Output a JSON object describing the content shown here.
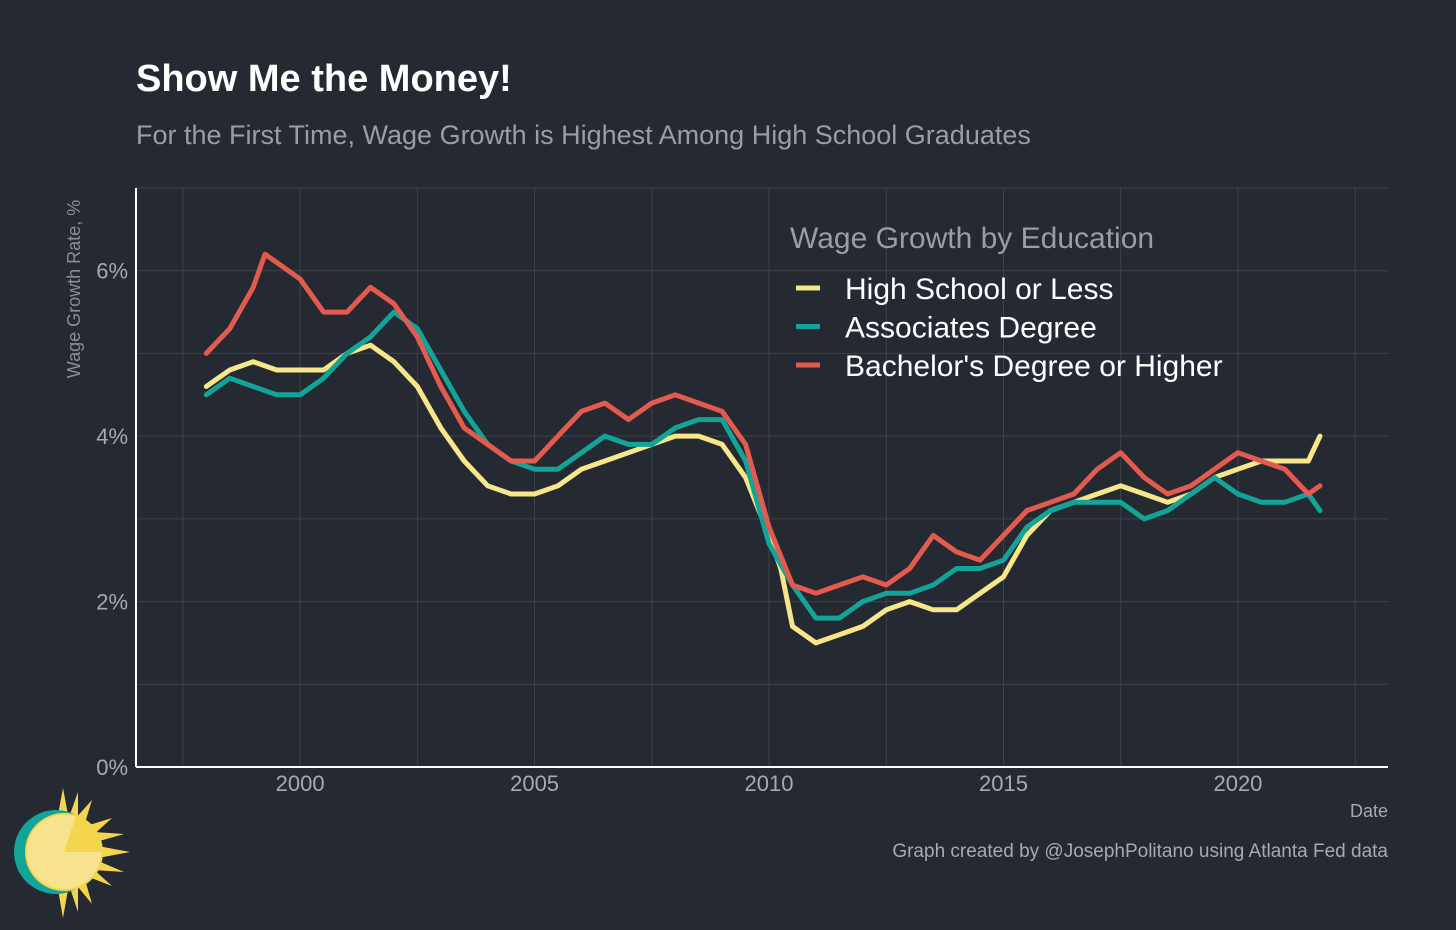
{
  "header": {
    "title": "Show Me the Money!",
    "subtitle": "For the First Time, Wage Growth is Highest Among High School Graduates"
  },
  "caption": "Graph created by @JosephPolitano using Atlanta Fed data",
  "logo": {
    "icon": "sun-icon"
  },
  "colors": {
    "background": "#252931",
    "grid": "#3e424b",
    "axis": "#ffffff",
    "tick_text": "#a7aab0",
    "legend_title": "#9a9da3",
    "legend_text": "#ffffff"
  },
  "chart_data": {
    "type": "line",
    "xlabel": "Date",
    "ylabel": "Wage Growth Rate, %",
    "xlim": [
      1996.5,
      2023.2
    ],
    "ylim": [
      0,
      7
    ],
    "x_ticks": [
      2000,
      2005,
      2010,
      2015,
      2020
    ],
    "x_tick_labels": [
      "2000",
      "2005",
      "2010",
      "2015",
      "2020"
    ],
    "y_ticks": [
      0,
      2,
      4,
      6
    ],
    "y_tick_labels": [
      "0%",
      "2%",
      "4%",
      "6%"
    ],
    "grid": true,
    "legend": {
      "title": "Wage Growth by Education",
      "position": "top-right"
    },
    "series": [
      {
        "name": "High School or Less",
        "color": "#f8e78a",
        "x": [
          "1998-01",
          "1998-04",
          "1998-07",
          "1999-01",
          "1999-07",
          "2000-01",
          "2000-07",
          "2001-01",
          "2001-07",
          "2002-01",
          "2002-07",
          "2003-01",
          "2003-07",
          "2004-01",
          "2004-07",
          "2005-01",
          "2005-07",
          "2006-01",
          "2006-07",
          "2007-01",
          "2007-07",
          "2008-01",
          "2008-07",
          "2009-01",
          "2009-07",
          "2010-01",
          "2010-04",
          "2010-07",
          "2011-01",
          "2011-07",
          "2012-01",
          "2012-07",
          "2013-01",
          "2013-07",
          "2014-01",
          "2014-07",
          "2015-01",
          "2015-07",
          "2016-01",
          "2016-07",
          "2017-01",
          "2017-07",
          "2018-01",
          "2018-07",
          "2019-01",
          "2019-07",
          "2020-01",
          "2020-07",
          "2021-01",
          "2021-07",
          "2021-10"
        ],
        "values": [
          4.6,
          4.7,
          4.8,
          4.9,
          4.8,
          4.8,
          4.8,
          5.0,
          5.1,
          4.9,
          4.6,
          4.1,
          3.7,
          3.4,
          3.3,
          3.3,
          3.4,
          3.6,
          3.7,
          3.8,
          3.9,
          4.0,
          4.0,
          3.9,
          3.5,
          2.8,
          2.4,
          1.7,
          1.5,
          1.6,
          1.7,
          1.9,
          2.0,
          1.9,
          1.9,
          2.1,
          2.3,
          2.8,
          3.1,
          3.2,
          3.3,
          3.4,
          3.3,
          3.2,
          3.3,
          3.5,
          3.6,
          3.7,
          3.7,
          3.7,
          4.0
        ]
      },
      {
        "name": "Associates Degree",
        "color": "#12a399",
        "x": [
          "1998-01",
          "1998-07",
          "1999-01",
          "1999-07",
          "2000-01",
          "2000-07",
          "2001-01",
          "2001-07",
          "2002-01",
          "2002-07",
          "2003-01",
          "2003-07",
          "2004-01",
          "2004-07",
          "2005-01",
          "2005-07",
          "2006-01",
          "2006-07",
          "2007-01",
          "2007-07",
          "2008-01",
          "2008-07",
          "2009-01",
          "2009-07",
          "2010-01",
          "2010-07",
          "2011-01",
          "2011-07",
          "2012-01",
          "2012-07",
          "2013-01",
          "2013-07",
          "2014-01",
          "2014-07",
          "2015-01",
          "2015-07",
          "2016-01",
          "2016-07",
          "2017-01",
          "2017-07",
          "2018-01",
          "2018-07",
          "2019-01",
          "2019-07",
          "2020-01",
          "2020-07",
          "2021-01",
          "2021-07",
          "2021-10"
        ],
        "values": [
          4.5,
          4.7,
          4.6,
          4.5,
          4.5,
          4.7,
          5.0,
          5.2,
          5.5,
          5.3,
          4.8,
          4.3,
          3.9,
          3.7,
          3.6,
          3.6,
          3.8,
          4.0,
          3.9,
          3.9,
          4.1,
          4.2,
          4.2,
          3.7,
          2.7,
          2.2,
          1.8,
          1.8,
          2.0,
          2.1,
          2.1,
          2.2,
          2.4,
          2.4,
          2.5,
          2.9,
          3.1,
          3.2,
          3.2,
          3.2,
          3.0,
          3.1,
          3.3,
          3.5,
          3.3,
          3.2,
          3.2,
          3.3,
          3.1
        ]
      },
      {
        "name": "Bachelor's Degree or Higher",
        "color": "#e35a4f",
        "x": [
          "1998-01",
          "1998-07",
          "1999-01",
          "1999-04",
          "1999-07",
          "2000-01",
          "2000-07",
          "2001-01",
          "2001-07",
          "2002-01",
          "2002-07",
          "2003-01",
          "2003-07",
          "2004-01",
          "2004-07",
          "2005-01",
          "2005-07",
          "2006-01",
          "2006-07",
          "2007-01",
          "2007-07",
          "2008-01",
          "2008-07",
          "2009-01",
          "2009-07",
          "2010-01",
          "2010-07",
          "2011-01",
          "2011-07",
          "2012-01",
          "2012-07",
          "2013-01",
          "2013-07",
          "2014-01",
          "2014-07",
          "2015-01",
          "2015-07",
          "2016-01",
          "2016-07",
          "2017-01",
          "2017-07",
          "2018-01",
          "2018-07",
          "2019-01",
          "2019-07",
          "2020-01",
          "2020-07",
          "2021-01",
          "2021-07",
          "2021-10"
        ],
        "values": [
          5.0,
          5.3,
          5.8,
          6.2,
          6.1,
          5.9,
          5.5,
          5.5,
          5.8,
          5.6,
          5.2,
          4.6,
          4.1,
          3.9,
          3.7,
          3.7,
          4.0,
          4.3,
          4.4,
          4.2,
          4.4,
          4.5,
          4.4,
          4.3,
          3.9,
          2.9,
          2.2,
          2.1,
          2.2,
          2.3,
          2.2,
          2.4,
          2.8,
          2.6,
          2.5,
          2.8,
          3.1,
          3.2,
          3.3,
          3.6,
          3.8,
          3.5,
          3.3,
          3.4,
          3.6,
          3.8,
          3.7,
          3.6,
          3.3,
          3.4
        ]
      }
    ]
  }
}
